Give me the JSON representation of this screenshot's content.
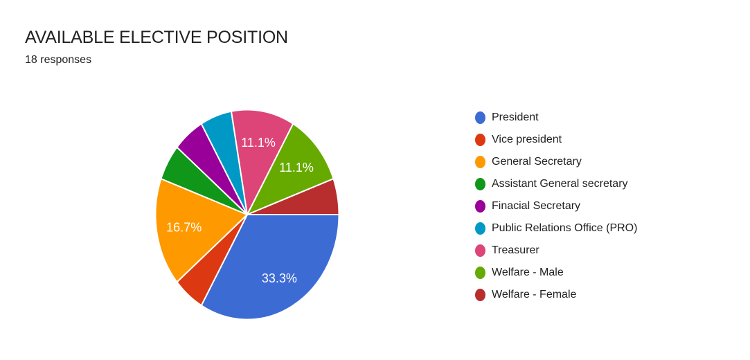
{
  "header": {
    "title": "AVAILABLE ELECTIVE POSITION",
    "responses": "18 responses"
  },
  "chart_data": {
    "type": "pie",
    "title": "AVAILABLE ELECTIVE POSITION",
    "subtitle": "18 responses",
    "total_responses": 18,
    "start_angle_deg": 90,
    "direction": "clockwise",
    "legend_position": "right",
    "slice_border_color": "#ffffff",
    "label_color": "#ffffff",
    "slices": [
      {
        "label": "President",
        "value": 6,
        "percent": "33.3%",
        "color": "#3C6BD4",
        "percent_label_visible": true
      },
      {
        "label": "Vice president",
        "value": 1,
        "percent": "5.6%",
        "color": "#DC3912",
        "percent_label_visible": false
      },
      {
        "label": "General Secretary",
        "value": 3,
        "percent": "16.7%",
        "color": "#FF9900",
        "percent_label_visible": true
      },
      {
        "label": "Assistant General secretary",
        "value": 1,
        "percent": "5.6%",
        "color": "#109618",
        "percent_label_visible": false
      },
      {
        "label": "Finacial Secretary",
        "value": 1,
        "percent": "5.6%",
        "color": "#990099",
        "percent_label_visible": false
      },
      {
        "label": "Public Relations Office (PRO)",
        "value": 1,
        "percent": "5.6%",
        "color": "#0099C6",
        "percent_label_visible": false
      },
      {
        "label": "Treasurer",
        "value": 2,
        "percent": "11.1%",
        "color": "#DD4477",
        "percent_label_visible": true
      },
      {
        "label": "Welfare - Male",
        "value": 2,
        "percent": "11.1%",
        "color": "#66AA00",
        "percent_label_visible": true
      },
      {
        "label": "Welfare - Female",
        "value": 1,
        "percent": "5.6%",
        "color": "#B82E2E",
        "percent_label_visible": false
      }
    ]
  }
}
